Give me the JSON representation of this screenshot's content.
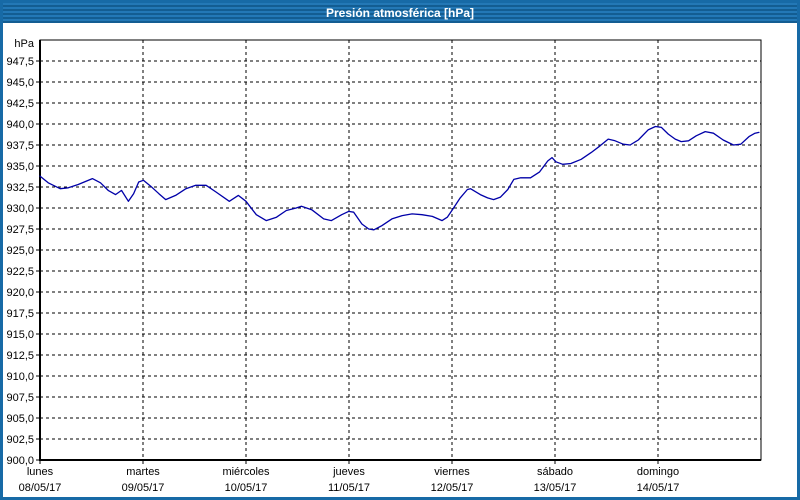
{
  "window": {
    "title": "Presión atmosférica [hPa]",
    "titlebar_color": "#1a6ba6",
    "border_color": "#176aa6"
  },
  "chart_data": {
    "type": "line",
    "title": "Presión atmosférica [hPa]",
    "grid": "dashed",
    "legend": "none",
    "y_axis": {
      "unit_label": "hPa",
      "min": 900,
      "max": 950,
      "tick_step": 2.5,
      "tick_labels": [
        "947,5",
        "945,0",
        "942,5",
        "940,0",
        "937,5",
        "935,0",
        "932,5",
        "930,0",
        "927,5",
        "925,0",
        "922,5",
        "920,0",
        "917,5",
        "915,0",
        "912,5",
        "910,0",
        "907,5",
        "905,0",
        "902,5",
        "900,0"
      ]
    },
    "x_axis": {
      "hours_total": 168,
      "hours_per_day": 24,
      "days": [
        {
          "name": "lunes",
          "date": "08/05/17"
        },
        {
          "name": "martes",
          "date": "09/05/17"
        },
        {
          "name": "miércoles",
          "date": "10/05/17"
        },
        {
          "name": "jueves",
          "date": "11/05/17"
        },
        {
          "name": "viernes",
          "date": "12/05/17"
        },
        {
          "name": "sábado",
          "date": "13/05/17"
        },
        {
          "name": "domingo",
          "date": "14/05/17"
        }
      ]
    },
    "series": [
      {
        "name": "Presión atmosférica",
        "color": "#0000a8",
        "points": [
          [
            0,
            933.8
          ],
          [
            1.9,
            933.0
          ],
          [
            4.7,
            932.3
          ],
          [
            6.6,
            932.4
          ],
          [
            8.9,
            932.8
          ],
          [
            12.2,
            933.5
          ],
          [
            14.1,
            933.0
          ],
          [
            15.9,
            932.1
          ],
          [
            17.6,
            931.6
          ],
          [
            19,
            932.1
          ],
          [
            20.6,
            930.8
          ],
          [
            21.8,
            931.7
          ],
          [
            23,
            933.1
          ],
          [
            24.1,
            933.3
          ],
          [
            25.8,
            932.6
          ],
          [
            27.7,
            931.7
          ],
          [
            29.3,
            931.0
          ],
          [
            31.6,
            931.5
          ],
          [
            34,
            932.3
          ],
          [
            36.3,
            932.7
          ],
          [
            38.7,
            932.7
          ],
          [
            41,
            931.9
          ],
          [
            44.1,
            930.8
          ],
          [
            46.2,
            931.5
          ],
          [
            48,
            930.8
          ],
          [
            50.4,
            929.2
          ],
          [
            52.7,
            928.5
          ],
          [
            55.1,
            928.9
          ],
          [
            57.4,
            929.7
          ],
          [
            59.7,
            930.0
          ],
          [
            60.9,
            930.2
          ],
          [
            63.3,
            929.8
          ],
          [
            66.1,
            928.7
          ],
          [
            67.9,
            928.5
          ],
          [
            70.3,
            929.2
          ],
          [
            71.9,
            929.6
          ],
          [
            73.1,
            929.5
          ],
          [
            75,
            928.1
          ],
          [
            76.6,
            927.5
          ],
          [
            77.8,
            927.4
          ],
          [
            79.7,
            927.9
          ],
          [
            82,
            928.7
          ],
          [
            84.4,
            929.1
          ],
          [
            86.7,
            929.3
          ],
          [
            89,
            929.2
          ],
          [
            91.4,
            929.0
          ],
          [
            93.7,
            928.5
          ],
          [
            94.9,
            928.9
          ],
          [
            96.1,
            929.8
          ],
          [
            97.9,
            931.2
          ],
          [
            99.6,
            932.2
          ],
          [
            100.3,
            932.3
          ],
          [
            102.6,
            931.6
          ],
          [
            104.3,
            931.2
          ],
          [
            105.7,
            931.0
          ],
          [
            107.3,
            931.3
          ],
          [
            109,
            932.2
          ],
          [
            110.4,
            933.4
          ],
          [
            112,
            933.6
          ],
          [
            114.3,
            933.6
          ],
          [
            116.4,
            934.3
          ],
          [
            118.3,
            935.6
          ],
          [
            119.3,
            936.0
          ],
          [
            120.2,
            935.5
          ],
          [
            121.8,
            935.2
          ],
          [
            123.7,
            935.3
          ],
          [
            126.1,
            935.8
          ],
          [
            128.4,
            936.6
          ],
          [
            130.5,
            937.4
          ],
          [
            132.4,
            938.2
          ],
          [
            134,
            938.0
          ],
          [
            135.9,
            937.6
          ],
          [
            137.5,
            937.5
          ],
          [
            139.4,
            938.1
          ],
          [
            141.7,
            939.3
          ],
          [
            143.4,
            939.7
          ],
          [
            144.8,
            939.6
          ],
          [
            146.4,
            938.8
          ],
          [
            148,
            938.2
          ],
          [
            149.4,
            937.9
          ],
          [
            151.1,
            938.0
          ],
          [
            152.9,
            938.6
          ],
          [
            155,
            939.1
          ],
          [
            156.9,
            938.9
          ],
          [
            159.2,
            938.1
          ],
          [
            161.6,
            937.5
          ],
          [
            163.3,
            937.6
          ],
          [
            165.2,
            938.5
          ],
          [
            166.6,
            938.9
          ],
          [
            167.5,
            939.0
          ]
        ]
      }
    ]
  }
}
